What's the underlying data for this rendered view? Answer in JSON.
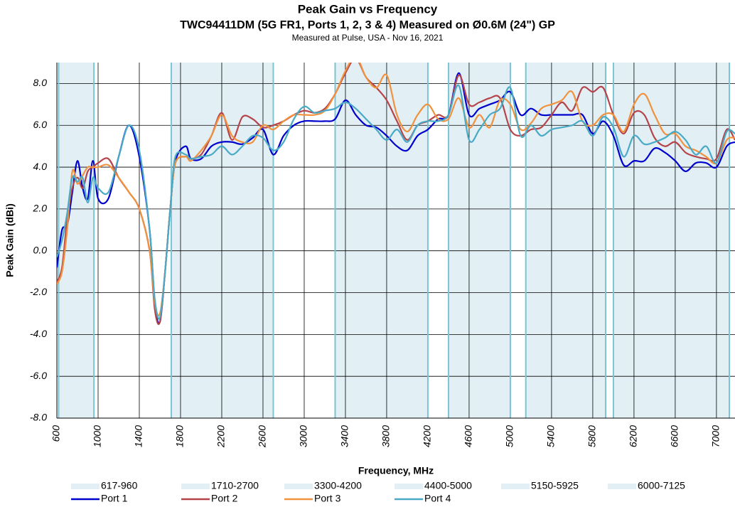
{
  "chart_data": {
    "type": "line",
    "title": "Peak Gain vs Frequency",
    "subtitle": "TWC94411DM (5G FR1, Ports 1, 2, 3 & 4) Measured on Ø0.6M (24\") GP",
    "note": "Measured at Pulse, USA - Nov 16, 2021",
    "xlabel": "Frequency, MHz",
    "ylabel": "Peak Gain (dBi)",
    "xlim": [
      600,
      7180
    ],
    "ylim": [
      -8,
      9
    ],
    "xticks": [
      600,
      1000,
      1400,
      1800,
      2200,
      2600,
      3000,
      3400,
      3800,
      4200,
      4600,
      5000,
      5400,
      5800,
      6200,
      6600,
      7000
    ],
    "yticks": [
      {
        "value": -8,
        "label": "-8.0"
      },
      {
        "value": -6,
        "label": "-6.0"
      },
      {
        "value": -4,
        "label": "-4.0"
      },
      {
        "value": -2,
        "label": "-2.0"
      },
      {
        "value": 0,
        "label": "0.0"
      },
      {
        "value": 2,
        "label": "2.0"
      },
      {
        "value": 4,
        "label": "4.0"
      },
      {
        "value": 6,
        "label": "6.0"
      },
      {
        "value": 8,
        "label": "8.0"
      }
    ],
    "grid": true,
    "bands": [
      {
        "name": "617-960",
        "range": [
          617,
          960
        ]
      },
      {
        "name": "1710-2700",
        "range": [
          1710,
          2700
        ]
      },
      {
        "name": "3300-4200",
        "range": [
          3300,
          4200
        ]
      },
      {
        "name": "4400-5000",
        "range": [
          4400,
          5000
        ]
      },
      {
        "name": "5150-5925",
        "range": [
          5150,
          5925
        ]
      },
      {
        "name": "6000-7125",
        "range": [
          6000,
          7125
        ]
      }
    ],
    "band_color": "#e2f0f5",
    "band_edge_color": "#7cc4d4",
    "x": [
      600,
      650,
      700,
      750,
      800,
      850,
      900,
      950,
      1000,
      1100,
      1200,
      1300,
      1400,
      1500,
      1550,
      1600,
      1650,
      1700,
      1750,
      1850,
      1900,
      2000,
      2100,
      2200,
      2300,
      2400,
      2500,
      2600,
      2700,
      2800,
      2900,
      3000,
      3100,
      3200,
      3300,
      3400,
      3500,
      3600,
      3700,
      3800,
      3900,
      4000,
      4100,
      4200,
      4300,
      4400,
      4500,
      4600,
      4700,
      4800,
      4900,
      5000,
      5100,
      5200,
      5300,
      5400,
      5500,
      5600,
      5700,
      5800,
      5900,
      6000,
      6100,
      6200,
      6300,
      6400,
      6500,
      6600,
      6700,
      6800,
      6900,
      7000,
      7100,
      7180
    ],
    "series": [
      {
        "name": "Port 1",
        "color": "#0000cd",
        "values": [
          -0.8,
          1.0,
          1.2,
          2.8,
          4.3,
          3.0,
          2.5,
          4.3,
          2.5,
          2.5,
          4.5,
          6.0,
          4.5,
          1.0,
          -2.5,
          -3.4,
          -1.0,
          2.0,
          4.3,
          5.0,
          4.4,
          4.4,
          5.0,
          5.2,
          5.2,
          5.1,
          5.4,
          5.8,
          4.6,
          5.5,
          6.0,
          6.2,
          6.2,
          6.2,
          6.3,
          7.2,
          6.5,
          6.0,
          5.9,
          5.5,
          5.0,
          4.8,
          5.5,
          5.8,
          6.3,
          6.5,
          8.5,
          6.5,
          6.8,
          7.0,
          7.2,
          7.6,
          6.5,
          6.8,
          6.5,
          6.5,
          6.5,
          6.5,
          6.5,
          5.6,
          6.2,
          5.5,
          4.1,
          4.3,
          4.3,
          4.9,
          4.7,
          4.3,
          3.8,
          4.2,
          4.2,
          4.0,
          5.0,
          5.2
        ]
      },
      {
        "name": "Port 2",
        "color": "#b5444a",
        "values": [
          -1.5,
          -0.8,
          1.5,
          3.0,
          3.5,
          3.0,
          3.8,
          4.0,
          4.2,
          4.4,
          3.5,
          2.8,
          2.0,
          0.0,
          -2.8,
          -3.4,
          -1.0,
          2.0,
          4.2,
          4.5,
          4.4,
          4.6,
          5.5,
          6.6,
          5.3,
          6.4,
          6.3,
          5.9,
          6.0,
          6.2,
          6.5,
          6.7,
          6.6,
          6.8,
          7.5,
          8.5,
          9.2,
          8.3,
          7.8,
          7.2,
          6.2,
          5.3,
          6.0,
          6.2,
          6.5,
          6.5,
          8.4,
          7.0,
          7.1,
          7.3,
          7.3,
          5.8,
          5.5,
          5.8,
          5.9,
          6.5,
          7.1,
          6.7,
          7.8,
          7.6,
          7.8,
          6.5,
          5.6,
          6.6,
          6.5,
          5.4,
          5.0,
          5.2,
          4.7,
          4.5,
          4.4,
          4.4,
          5.8,
          5.3
        ]
      },
      {
        "name": "Port 3",
        "color": "#f0923e",
        "values": [
          -1.6,
          -1.0,
          1.0,
          3.8,
          3.2,
          3.6,
          4.0,
          4.0,
          4.0,
          4.1,
          3.5,
          2.8,
          2.0,
          0.0,
          -2.5,
          -3.0,
          -1.0,
          2.0,
          4.2,
          4.5,
          4.3,
          4.8,
          5.5,
          6.5,
          5.5,
          5.2,
          5.2,
          6.0,
          5.8,
          6.2,
          6.5,
          6.5,
          6.5,
          6.7,
          7.5,
          8.6,
          9.3,
          8.3,
          7.8,
          8.4,
          6.5,
          5.7,
          6.5,
          7.0,
          6.3,
          6.3,
          7.3,
          5.9,
          6.5,
          5.9,
          7.2,
          7.0,
          5.8,
          6.1,
          6.8,
          7.0,
          7.2,
          7.6,
          6.2,
          6.0,
          6.5,
          6.5,
          5.7,
          7.0,
          7.5,
          6.5,
          5.6,
          5.6,
          5.0,
          4.8,
          4.5,
          4.2,
          5.3,
          5.4
        ]
      },
      {
        "name": "Port 4",
        "color": "#4aaac6",
        "values": [
          -0.3,
          0.5,
          1.8,
          3.5,
          3.3,
          3.5,
          2.3,
          3.5,
          3.0,
          2.8,
          4.5,
          6.0,
          4.8,
          1.0,
          -2.3,
          -3.2,
          -1.0,
          2.0,
          4.5,
          4.6,
          4.4,
          4.5,
          4.6,
          5.0,
          4.6,
          5.0,
          5.5,
          5.4,
          4.8,
          5.2,
          6.3,
          6.9,
          6.6,
          6.7,
          6.8,
          7.1,
          6.8,
          6.3,
          5.8,
          5.3,
          5.8,
          5.2,
          6.0,
          6.2,
          6.2,
          6.5,
          7.9,
          5.3,
          5.8,
          6.5,
          6.8,
          7.8,
          5.5,
          6.0,
          5.5,
          5.8,
          5.9,
          6.0,
          6.2,
          5.5,
          6.4,
          5.9,
          4.5,
          5.5,
          5.1,
          5.2,
          5.4,
          5.7,
          5.3,
          4.6,
          5.0,
          4.2,
          5.7,
          5.6
        ]
      }
    ]
  }
}
